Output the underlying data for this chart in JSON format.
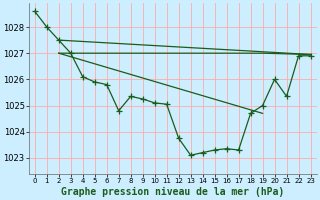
{
  "background_color": "#cceeff",
  "grid_color": "#ffaaaa",
  "line_color": "#1a5c1a",
  "title": "Graphe pression niveau de la mer (hPa)",
  "title_fontsize": 7,
  "tick_fontsize": 6,
  "xlim": [
    -0.5,
    23.5
  ],
  "ylim": [
    1022.4,
    1028.9
  ],
  "yticks": [
    1023,
    1024,
    1025,
    1026,
    1027,
    1028
  ],
  "xticks": [
    0,
    1,
    2,
    3,
    4,
    5,
    6,
    7,
    8,
    9,
    10,
    11,
    12,
    13,
    14,
    15,
    16,
    17,
    18,
    19,
    20,
    21,
    22,
    23
  ],
  "curve_x": [
    0,
    1,
    2,
    3,
    4,
    5,
    6,
    7,
    8,
    9,
    10,
    11,
    12,
    13,
    14,
    15,
    16,
    17,
    18,
    19,
    20,
    21,
    22,
    23
  ],
  "curve_y": [
    1028.6,
    1028.0,
    1027.5,
    1027.0,
    1026.1,
    1025.9,
    1025.8,
    1024.8,
    1025.35,
    1025.25,
    1025.1,
    1025.05,
    1023.75,
    1023.1,
    1023.2,
    1023.3,
    1023.35,
    1023.3,
    1024.7,
    1025.0,
    1026.0,
    1025.35,
    1026.9,
    1026.9
  ],
  "flat_line_x": [
    2,
    19,
    23
  ],
  "flat_line_y": [
    1027.0,
    1027.0,
    1026.95
  ],
  "diag_line1_x": [
    2,
    23
  ],
  "diag_line1_y": [
    1027.5,
    1026.95
  ],
  "diag_line2_x": [
    2,
    19
  ],
  "diag_line2_y": [
    1027.0,
    1024.7
  ]
}
